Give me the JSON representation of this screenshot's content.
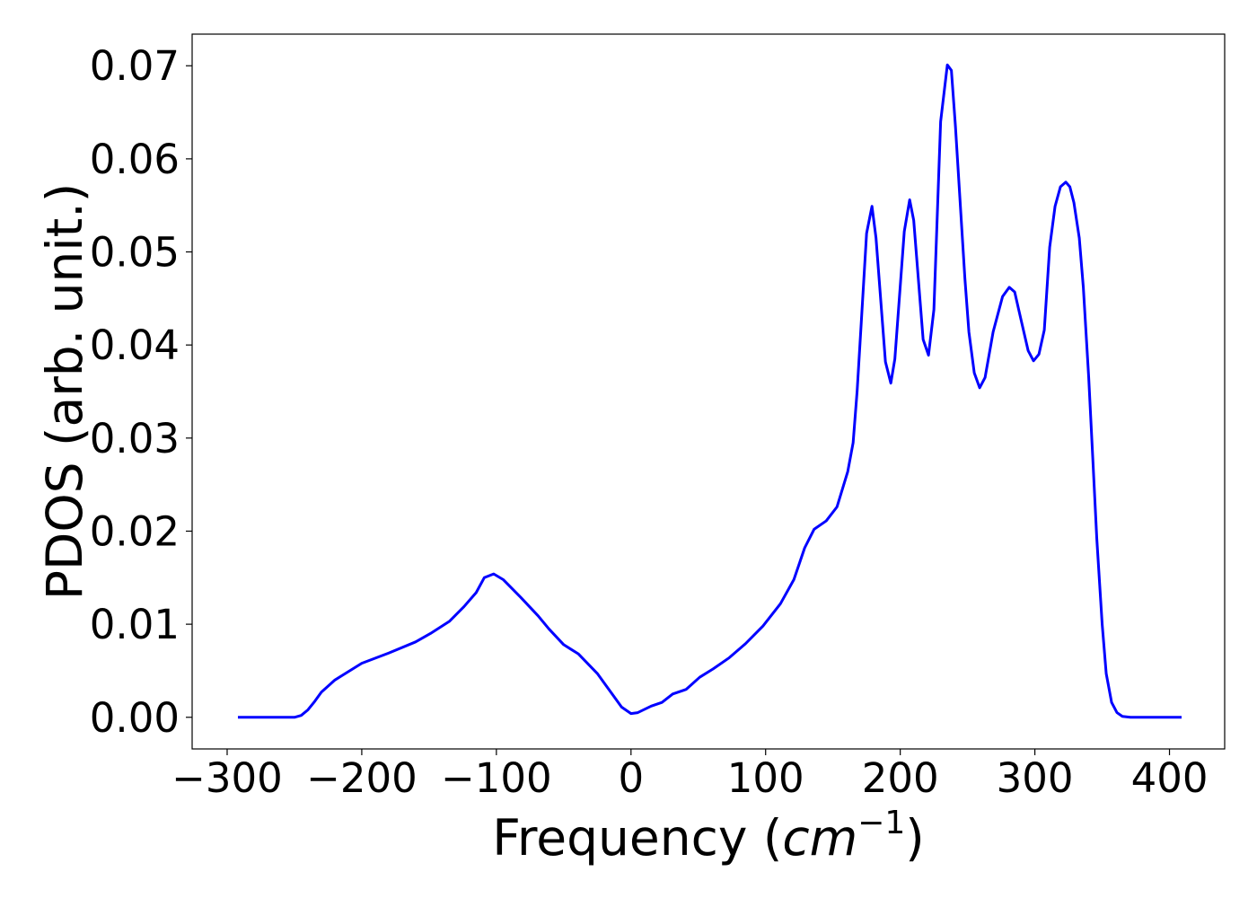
{
  "chart_data": {
    "type": "line",
    "ylabel": "PDOS (arb. unit.)",
    "xlabel_parts": [
      "Frequency (",
      "cm",
      "−1",
      ")"
    ],
    "xlim": [
      -326,
      441
    ],
    "ylim": [
      -0.0034,
      0.0734
    ],
    "xticks": [
      {
        "value": -300,
        "label": "−300"
      },
      {
        "value": -200,
        "label": "−200"
      },
      {
        "value": -100,
        "label": "−100"
      },
      0,
      100,
      200,
      300,
      400
    ],
    "yticks": [
      {
        "value": 0,
        "label": "0.00"
      },
      {
        "value": 0.01,
        "label": "0.01"
      },
      {
        "value": 0.02,
        "label": "0.02"
      },
      {
        "value": 0.03,
        "label": "0.03"
      },
      {
        "value": 0.04,
        "label": "0.04"
      },
      {
        "value": 0.05,
        "label": "0.05"
      },
      {
        "value": 0.06,
        "label": "0.06"
      },
      {
        "value": 0.07,
        "label": "0.07"
      }
    ],
    "grid": false,
    "x": [
      -292,
      -250,
      -245,
      -240,
      -235,
      -230,
      -220,
      -200,
      -180,
      -160,
      -149,
      -135,
      -124,
      -115,
      -109,
      -102,
      -95,
      -82,
      -69,
      -61,
      -50,
      -39,
      -25,
      -15,
      -7,
      0,
      5,
      15,
      23,
      31,
      41,
      51,
      61,
      73,
      85,
      98,
      111,
      121,
      129,
      136,
      145,
      153,
      161,
      165,
      168,
      171,
      175,
      179,
      182,
      189,
      193,
      196,
      203,
      207,
      210,
      217,
      221,
      225,
      230,
      235,
      238,
      241,
      248,
      251,
      255,
      259,
      263,
      269,
      276,
      281,
      285,
      288,
      295,
      299,
      303,
      307,
      311,
      315,
      319,
      323,
      326,
      329,
      333,
      336,
      340,
      343,
      346,
      350,
      353,
      357,
      361,
      365,
      371,
      409
    ],
    "series": [
      {
        "color": "#0000ff",
        "values": [
          0,
          0,
          0.0002,
          0.0008,
          0.0017,
          0.0027,
          0.004,
          0.0058,
          0.0069,
          0.0081,
          0.009,
          0.0103,
          0.0119,
          0.0134,
          0.015,
          0.0154,
          0.0148,
          0.0129,
          0.0109,
          0.0095,
          0.0078,
          0.0068,
          0.0047,
          0.0027,
          0.0011,
          0.0004,
          0.0005,
          0.0012,
          0.0016,
          0.0025,
          0.003,
          0.0043,
          0.0052,
          0.0064,
          0.0079,
          0.0098,
          0.0122,
          0.0148,
          0.0182,
          0.0202,
          0.0211,
          0.0226,
          0.0264,
          0.0295,
          0.0351,
          0.0423,
          0.052,
          0.0549,
          0.0515,
          0.0382,
          0.0359,
          0.0385,
          0.0522,
          0.0556,
          0.0534,
          0.0406,
          0.0389,
          0.0438,
          0.064,
          0.0701,
          0.0695,
          0.0635,
          0.0472,
          0.0414,
          0.037,
          0.0354,
          0.0365,
          0.0414,
          0.0452,
          0.0462,
          0.0457,
          0.0438,
          0.0394,
          0.0383,
          0.039,
          0.0416,
          0.0505,
          0.0549,
          0.057,
          0.0575,
          0.057,
          0.0553,
          0.0515,
          0.0462,
          0.0365,
          0.0279,
          0.0192,
          0.01,
          0.0047,
          0.0016,
          0.0005,
          0.0001,
          0,
          0
        ]
      }
    ]
  }
}
